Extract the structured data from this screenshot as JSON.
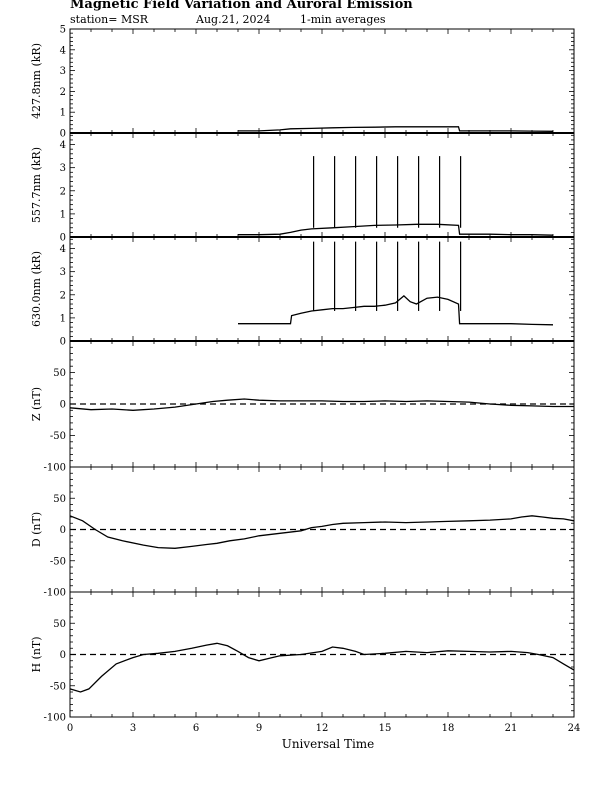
{
  "header": {
    "title": "Magnetic Field Variation and Auroral Emission",
    "station": "station= MSR",
    "date": "Aug.21, 2024",
    "averaging": "1-min averages"
  },
  "chart_data": {
    "type": "line",
    "xlabel": "Universal Time",
    "x_ticks": [
      0,
      3,
      6,
      9,
      12,
      15,
      18,
      21,
      24
    ],
    "xlim": [
      0,
      24
    ],
    "panels": [
      {
        "id": "p4278",
        "ylabel": "427.8nm (kR)",
        "ylim": [
          0,
          5
        ],
        "y_ticks": [
          0,
          1,
          2,
          3,
          4,
          5
        ],
        "zero_dashed": false,
        "series": [
          [
            8.0,
            0.1
          ],
          [
            9.0,
            0.1
          ],
          [
            10.0,
            0.15
          ],
          [
            10.5,
            0.2
          ],
          [
            11.5,
            0.22
          ],
          [
            12.5,
            0.25
          ],
          [
            13.5,
            0.27
          ],
          [
            14.5,
            0.28
          ],
          [
            15.5,
            0.3
          ],
          [
            16.5,
            0.3
          ],
          [
            17.5,
            0.3
          ],
          [
            18.5,
            0.3
          ],
          [
            18.55,
            0.1
          ],
          [
            20.0,
            0.1
          ],
          [
            21.0,
            0.1
          ],
          [
            22.0,
            0.09
          ],
          [
            23.0,
            0.08
          ]
        ],
        "spikes": []
      },
      {
        "id": "p5577",
        "ylabel": "557.7nm (kR)",
        "ylim": [
          0,
          4.5
        ],
        "y_ticks": [
          0,
          1,
          2,
          3,
          4
        ],
        "zero_dashed": false,
        "series": [
          [
            8.0,
            0.1
          ],
          [
            9.0,
            0.1
          ],
          [
            10.0,
            0.12
          ],
          [
            10.5,
            0.2
          ],
          [
            11.0,
            0.3
          ],
          [
            11.5,
            0.35
          ],
          [
            12.5,
            0.4
          ],
          [
            13.5,
            0.45
          ],
          [
            14.5,
            0.5
          ],
          [
            15.5,
            0.52
          ],
          [
            16.5,
            0.55
          ],
          [
            17.5,
            0.55
          ],
          [
            18.5,
            0.5
          ],
          [
            18.55,
            0.12
          ],
          [
            20.0,
            0.12
          ],
          [
            21.0,
            0.1
          ],
          [
            22.0,
            0.1
          ],
          [
            23.0,
            0.08
          ]
        ],
        "spikes": [
          {
            "times": [
              11.6,
              12.6,
              13.6,
              14.6,
              15.6,
              16.6,
              17.6,
              18.6
            ],
            "from": 0.4,
            "to": 3.5
          }
        ]
      },
      {
        "id": "p6300",
        "ylabel": "630.0nm (kR)",
        "ylim": [
          0,
          4.5
        ],
        "y_ticks": [
          0,
          1,
          2,
          3,
          4
        ],
        "zero_dashed": false,
        "series": [
          [
            8.0,
            0.75
          ],
          [
            9.0,
            0.75
          ],
          [
            10.0,
            0.75
          ],
          [
            10.5,
            0.75
          ],
          [
            10.55,
            1.1
          ],
          [
            11.0,
            1.2
          ],
          [
            11.5,
            1.3
          ],
          [
            12.0,
            1.35
          ],
          [
            12.5,
            1.4
          ],
          [
            13.0,
            1.4
          ],
          [
            13.5,
            1.45
          ],
          [
            14.0,
            1.5
          ],
          [
            14.5,
            1.5
          ],
          [
            15.0,
            1.55
          ],
          [
            15.5,
            1.65
          ],
          [
            15.9,
            1.95
          ],
          [
            16.2,
            1.7
          ],
          [
            16.5,
            1.6
          ],
          [
            17.0,
            1.85
          ],
          [
            17.5,
            1.9
          ],
          [
            18.0,
            1.8
          ],
          [
            18.5,
            1.6
          ],
          [
            18.55,
            0.75
          ],
          [
            20.0,
            0.75
          ],
          [
            21.0,
            0.75
          ],
          [
            22.0,
            0.72
          ],
          [
            23.0,
            0.7
          ]
        ],
        "spikes": [
          {
            "times": [
              11.6,
              12.6,
              13.6,
              14.6,
              15.6,
              16.6,
              17.6,
              18.6
            ],
            "from": 1.3,
            "to": 4.3
          }
        ]
      },
      {
        "id": "pZ",
        "ylabel": "Z (nT)",
        "ylim": [
          -100,
          100
        ],
        "y_ticks": [
          -100,
          -50,
          0,
          50
        ],
        "zero_dashed": true,
        "series": [
          [
            0,
            -6
          ],
          [
            1,
            -9
          ],
          [
            2,
            -8
          ],
          [
            3,
            -10
          ],
          [
            4,
            -8
          ],
          [
            5,
            -5
          ],
          [
            6,
            0
          ],
          [
            6.8,
            4
          ],
          [
            7.5,
            6
          ],
          [
            8.3,
            8
          ],
          [
            9,
            6
          ],
          [
            10,
            5
          ],
          [
            11,
            5
          ],
          [
            12,
            5
          ],
          [
            13,
            4
          ],
          [
            14,
            4
          ],
          [
            15,
            5
          ],
          [
            16,
            4
          ],
          [
            17,
            5
          ],
          [
            18,
            4
          ],
          [
            19,
            3
          ],
          [
            20,
            0
          ],
          [
            21,
            -2
          ],
          [
            22,
            -3
          ],
          [
            23,
            -4
          ],
          [
            24,
            -4
          ]
        ],
        "spikes": []
      },
      {
        "id": "pD",
        "ylabel": "D (nT)",
        "ylim": [
          -100,
          100
        ],
        "y_ticks": [
          -100,
          -50,
          0,
          50
        ],
        "zero_dashed": true,
        "series": [
          [
            0,
            22
          ],
          [
            0.6,
            14
          ],
          [
            1.2,
            0
          ],
          [
            1.8,
            -12
          ],
          [
            2.5,
            -18
          ],
          [
            3.5,
            -25
          ],
          [
            4.2,
            -29
          ],
          [
            5,
            -30
          ],
          [
            5.8,
            -27
          ],
          [
            6.5,
            -24
          ],
          [
            7,
            -22
          ],
          [
            7.6,
            -18
          ],
          [
            8.3,
            -15
          ],
          [
            9,
            -10
          ],
          [
            10,
            -6
          ],
          [
            11,
            -2
          ],
          [
            11.5,
            3
          ],
          [
            12,
            5
          ],
          [
            12.5,
            8
          ],
          [
            13,
            10
          ],
          [
            14,
            11
          ],
          [
            15,
            12
          ],
          [
            16,
            11
          ],
          [
            17,
            12
          ],
          [
            18,
            13
          ],
          [
            19,
            14
          ],
          [
            20,
            15
          ],
          [
            21,
            17
          ],
          [
            21.5,
            20
          ],
          [
            22,
            22
          ],
          [
            22.5,
            20
          ],
          [
            23,
            18
          ],
          [
            23.5,
            17
          ],
          [
            24,
            14
          ]
        ],
        "spikes": []
      },
      {
        "id": "pH",
        "ylabel": "H (nT)",
        "ylim": [
          -100,
          100
        ],
        "y_ticks": [
          -100,
          -50,
          0,
          50
        ],
        "zero_dashed": true,
        "series": [
          [
            0,
            -55
          ],
          [
            0.5,
            -60
          ],
          [
            0.9,
            -55
          ],
          [
            1.5,
            -35
          ],
          [
            2.2,
            -15
          ],
          [
            3,
            -5
          ],
          [
            3.5,
            0
          ],
          [
            4.2,
            2
          ],
          [
            5,
            5
          ],
          [
            5.8,
            10
          ],
          [
            6.5,
            15
          ],
          [
            7,
            18
          ],
          [
            7.5,
            14
          ],
          [
            8,
            5
          ],
          [
            8.5,
            -5
          ],
          [
            9,
            -10
          ],
          [
            9.5,
            -6
          ],
          [
            10,
            -2
          ],
          [
            11,
            0
          ],
          [
            12,
            5
          ],
          [
            12.5,
            12
          ],
          [
            13,
            10
          ],
          [
            13.6,
            5
          ],
          [
            14,
            0
          ],
          [
            15,
            2
          ],
          [
            16,
            5
          ],
          [
            17,
            3
          ],
          [
            18,
            6
          ],
          [
            19,
            5
          ],
          [
            20,
            4
          ],
          [
            21,
            5
          ],
          [
            21.8,
            3
          ],
          [
            22.3,
            0
          ],
          [
            23,
            -5
          ],
          [
            23.5,
            -15
          ],
          [
            24,
            -25
          ]
        ],
        "spikes": []
      }
    ]
  }
}
